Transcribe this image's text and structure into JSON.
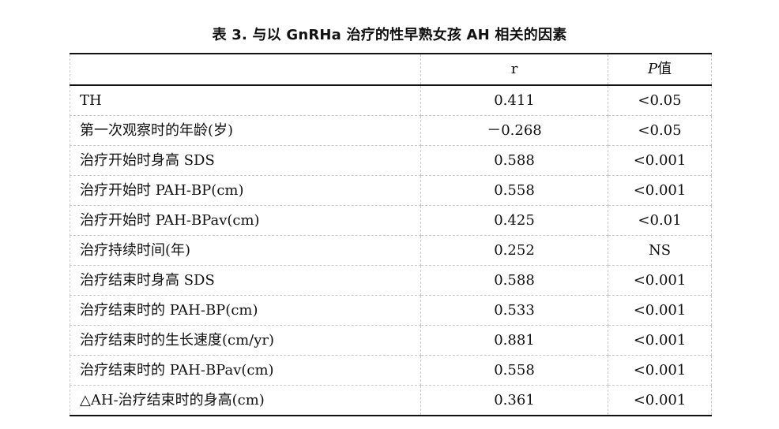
{
  "caption": "表 3. 与以 GnRHa 治疗的性早熟女孩 AH 相关的因素",
  "table": {
    "headers": {
      "factor": "",
      "r": "r",
      "p_letter": "P",
      "p_suffix": "值"
    },
    "rows": [
      {
        "factor": "TH",
        "r": "0.411",
        "p": "<0.05"
      },
      {
        "factor": "第一次观察时的年龄(岁)",
        "r": "－0.268",
        "p": "<0.05"
      },
      {
        "factor": "治疗开始时身高 SDS",
        "r": "0.588",
        "p": "<0.001"
      },
      {
        "factor": "治疗开始时 PAH-BP(cm)",
        "r": "0.558",
        "p": "<0.001"
      },
      {
        "factor": "治疗开始时 PAH-BPav(cm)",
        "r": "0.425",
        "p": "<0.01"
      },
      {
        "factor": "治疗持续时间(年)",
        "r": "0.252",
        "p": "NS"
      },
      {
        "factor": "治疗结束时身高 SDS",
        "r": "0.588",
        "p": "<0.001"
      },
      {
        "factor": "治疗结束时的 PAH-BP(cm)",
        "r": "0.533",
        "p": "<0.001"
      },
      {
        "factor": "治疗结束时的生长速度(cm/yr)",
        "r": "0.881",
        "p": "<0.001"
      },
      {
        "factor": "治疗结束时的 PAH-BPav(cm)",
        "r": "0.558",
        "p": "<0.001"
      },
      {
        "factor": "△AH-治疗结束时的身高(cm)",
        "r": "0.361",
        "p": "<0.001"
      }
    ]
  }
}
